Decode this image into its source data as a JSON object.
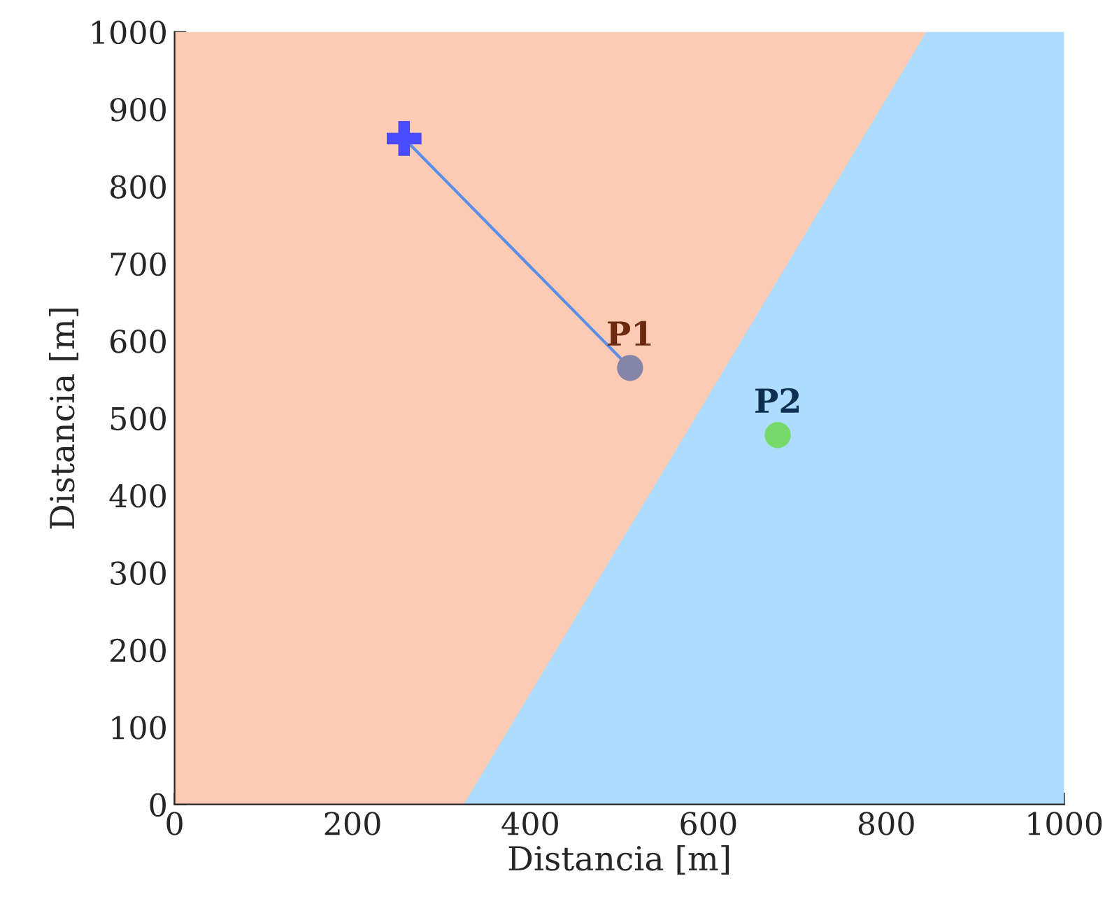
{
  "chart_data": {
    "type": "scatter",
    "xlabel": "Distancia [m]",
    "ylabel": "Distancia [m]",
    "xlim": [
      0,
      1000
    ],
    "ylim": [
      0,
      1000
    ],
    "xticks": [
      0,
      200,
      400,
      600,
      800,
      1000
    ],
    "yticks": [
      0,
      100,
      200,
      300,
      400,
      500,
      600,
      700,
      800,
      900,
      1000
    ],
    "grid": false,
    "series": [
      {
        "type": "area",
        "color": "#fdcab4",
        "x": [
          0,
          325,
          845
        ],
        "values": [
          1000,
          1000,
          1000
        ]
      },
      {
        "type": "area",
        "color": "#addcfd",
        "x": [
          325,
          845,
          1000
        ],
        "values": [
          0,
          1000,
          1000
        ]
      },
      {
        "type": "line",
        "color": "#5b8ee6",
        "x": [
          258,
          512
        ],
        "values": [
          862,
          565
        ],
        "marker": "none"
      },
      {
        "type": "scatter",
        "color": "#4a4aff",
        "x": [
          258
        ],
        "values": [
          862
        ],
        "marker": "cross"
      },
      {
        "colors": [
          "#8485a8",
          "#77d96a"
        ],
        "x": [
          512,
          678
        ],
        "values": [
          565,
          478
        ],
        "marker": "circle"
      }
    ],
    "annotations": [
      {
        "text": "P1",
        "x": 512,
        "y": 565
      },
      {
        "text": "P2",
        "x": 678,
        "y": 478
      }
    ]
  }
}
